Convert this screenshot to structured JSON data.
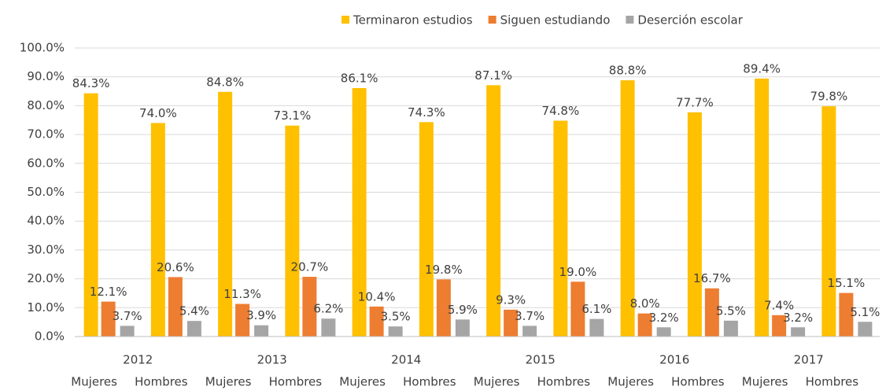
{
  "chart_data": {
    "type": "bar",
    "groups": [
      "2012",
      "2013",
      "2014",
      "2015",
      "2016",
      "2017"
    ],
    "categories": [
      "Mujeres",
      "Hombres",
      "Mujeres",
      "Hombres",
      "Mujeres",
      "Hombres",
      "Mujeres",
      "Hombres",
      "Mujeres",
      "Hombres",
      "Mujeres",
      "Hombres"
    ],
    "series": [
      {
        "name": "Terminaron estudios",
        "color": "#FFC000",
        "values": [
          84.3,
          74.0,
          84.8,
          73.1,
          86.1,
          74.3,
          87.1,
          74.8,
          88.8,
          77.7,
          89.4,
          79.8
        ],
        "value_labels": [
          "84.3%",
          "74.0%",
          "84.8%",
          "73.1%",
          "86.1%",
          "74.3%",
          "87.1%",
          "74.8%",
          "88.8%",
          "77.7%",
          "89.4%",
          "79.8%"
        ]
      },
      {
        "name": "Siguen estudiando",
        "color": "#ED7D31",
        "values": [
          12.1,
          20.6,
          11.3,
          20.7,
          10.4,
          19.8,
          9.3,
          19.0,
          8.0,
          16.7,
          7.4,
          15.1
        ],
        "value_labels": [
          "12.1%",
          "20.6%",
          "11.3%",
          "20.7%",
          "10.4%",
          "19.8%",
          "9.3%",
          "19.0%",
          "8.0%",
          "16.7%",
          "7.4%",
          "15.1%"
        ]
      },
      {
        "name": "Deserción escolar",
        "color": "#A5A5A5",
        "values": [
          3.7,
          5.4,
          3.9,
          6.2,
          3.5,
          5.9,
          3.7,
          6.1,
          3.2,
          5.5,
          3.2,
          5.1
        ],
        "value_labels": [
          "3.7%",
          "5.4%",
          "3.9%",
          "6.2%",
          "3.5%",
          "5.9%",
          "3.7%",
          "6.1%",
          "3.2%",
          "5.5%",
          "3.2%",
          "5.1%"
        ]
      }
    ],
    "ylim": [
      0,
      100
    ],
    "yticks": [
      {
        "value": 0,
        "label": "0.0%"
      },
      {
        "value": 10,
        "label": "10.0%"
      },
      {
        "value": 20,
        "label": "20.0%"
      },
      {
        "value": 30,
        "label": "30.0%"
      },
      {
        "value": 40,
        "label": "40.0%"
      },
      {
        "value": 50,
        "label": "50.0%"
      },
      {
        "value": 60,
        "label": "60.0%"
      },
      {
        "value": 70,
        "label": "70.0%"
      },
      {
        "value": 80,
        "label": "80.0%"
      },
      {
        "value": 90,
        "label": "90.0%"
      },
      {
        "value": 100,
        "label": "100.0%"
      }
    ],
    "grid": true,
    "legend": "top"
  }
}
